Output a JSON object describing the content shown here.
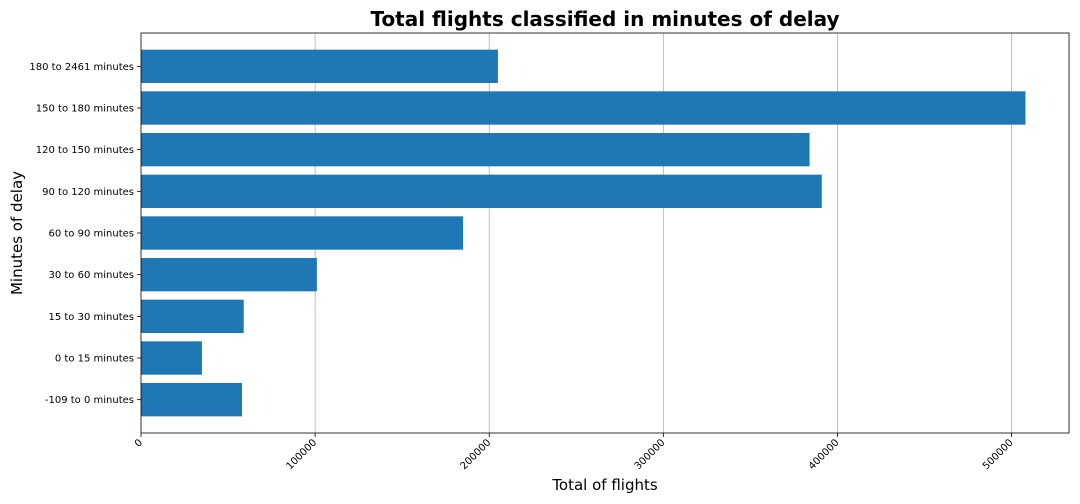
{
  "chart_data": {
    "type": "bar",
    "orientation": "horizontal",
    "title": "Total flights classified in minutes of delay",
    "xlabel": "Total of flights",
    "ylabel": "Minutes of delay",
    "categories": [
      "-109 to 0 minutes",
      "0 to 15 minutes",
      "15 to 30 minutes",
      "30 to 60 minutes",
      "60 to 90 minutes",
      "90 to 120 minutes",
      "120 to 150 minutes",
      "150 to 180 minutes",
      "180 to 2461 minutes"
    ],
    "values": [
      58000,
      35000,
      59000,
      101000,
      185000,
      391000,
      384000,
      508000,
      205000
    ],
    "xlim": [
      0,
      533000
    ],
    "xticks": [
      0,
      100000,
      200000,
      300000,
      400000,
      500000
    ],
    "xtick_labels": [
      "0",
      "100000",
      "200000",
      "300000",
      "400000",
      "500000"
    ],
    "grid": "x-major",
    "bar_color": "#1f77b4"
  }
}
